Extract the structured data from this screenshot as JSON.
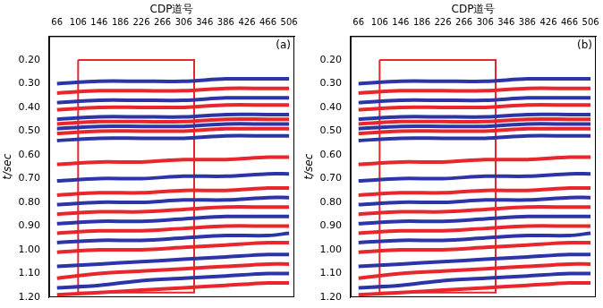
{
  "chart_data": [
    {
      "type": "line",
      "panel_label": "(a)",
      "x_label": "CDP道号",
      "y_label": "t/sec",
      "xlim": [
        51,
        516
      ],
      "xticks": [
        66,
        106,
        146,
        186,
        226,
        266,
        306,
        346,
        386,
        426,
        466,
        506
      ],
      "ylim": [
        0.1,
        1.2
      ],
      "yticks": [
        {
          "value": 0.2,
          "label": "0.20"
        },
        {
          "value": 0.3,
          "label": "0.30"
        },
        {
          "value": 0.4,
          "label": "0.40"
        },
        {
          "value": 0.5,
          "label": "0.50"
        },
        {
          "value": 0.6,
          "label": "0.60"
        },
        {
          "value": 0.7,
          "label": "0.70"
        },
        {
          "value": 0.8,
          "label": "0.80"
        },
        {
          "value": 0.9,
          "label": "0.90"
        },
        {
          "value": 1.0,
          "label": "1.00"
        },
        {
          "value": 1.1,
          "label": "1.10"
        },
        {
          "value": 1.2,
          "label": "1.20"
        }
      ],
      "grid": false,
      "legend": "none",
      "box": {
        "x": [
          106,
          326
        ],
        "y": [
          0.2,
          1.18
        ],
        "color": "#e8262b"
      },
      "x": [
        66,
        146,
        226,
        306,
        386,
        466,
        506
      ],
      "series": [
        {
          "color": "#2b35a8",
          "values": [
            0.3,
            0.29,
            0.29,
            0.29,
            0.28,
            0.28,
            0.28
          ]
        },
        {
          "color": "#e8262b",
          "values": [
            0.34,
            0.33,
            0.33,
            0.33,
            0.32,
            0.32,
            0.32
          ]
        },
        {
          "color": "#2b35a8",
          "values": [
            0.38,
            0.37,
            0.37,
            0.37,
            0.36,
            0.36,
            0.36
          ]
        },
        {
          "color": "#e8262b",
          "values": [
            0.41,
            0.4,
            0.4,
            0.4,
            0.39,
            0.39,
            0.39
          ]
        },
        {
          "color": "#2b35a8",
          "values": [
            0.45,
            0.44,
            0.44,
            0.44,
            0.43,
            0.43,
            0.43
          ]
        },
        {
          "color": "#e8262b",
          "values": [
            0.47,
            0.46,
            0.46,
            0.46,
            0.45,
            0.45,
            0.45
          ]
        },
        {
          "color": "#2b35a8",
          "values": [
            0.49,
            0.48,
            0.48,
            0.48,
            0.47,
            0.47,
            0.47
          ]
        },
        {
          "color": "#e8262b",
          "values": [
            0.51,
            0.5,
            0.5,
            0.5,
            0.49,
            0.49,
            0.49
          ]
        },
        {
          "color": "#2b35a8",
          "values": [
            0.54,
            0.53,
            0.53,
            0.53,
            0.52,
            0.52,
            0.52
          ]
        },
        {
          "color": "#e8262b",
          "values": [
            0.64,
            0.63,
            0.63,
            0.62,
            0.62,
            0.61,
            0.61
          ]
        },
        {
          "color": "#2b35a8",
          "values": [
            0.71,
            0.7,
            0.7,
            0.69,
            0.69,
            0.68,
            0.68
          ]
        },
        {
          "color": "#e8262b",
          "values": [
            0.77,
            0.76,
            0.76,
            0.75,
            0.75,
            0.74,
            0.74
          ]
        },
        {
          "color": "#2b35a8",
          "values": [
            0.81,
            0.8,
            0.8,
            0.79,
            0.79,
            0.78,
            0.78
          ]
        },
        {
          "color": "#e8262b",
          "values": [
            0.85,
            0.84,
            0.84,
            0.83,
            0.82,
            0.82,
            0.82
          ]
        },
        {
          "color": "#2b35a8",
          "values": [
            0.89,
            0.88,
            0.88,
            0.87,
            0.86,
            0.86,
            0.86
          ]
        },
        {
          "color": "#e8262b",
          "values": [
            0.93,
            0.92,
            0.92,
            0.91,
            0.9,
            0.9,
            0.9
          ]
        },
        {
          "color": "#2b35a8",
          "values": [
            0.97,
            0.96,
            0.96,
            0.95,
            0.94,
            0.94,
            0.93
          ]
        },
        {
          "color": "#e8262b",
          "values": [
            1.01,
            1.0,
            1.0,
            0.99,
            0.98,
            0.97,
            0.97
          ]
        },
        {
          "color": "#2b35a8",
          "values": [
            1.07,
            1.06,
            1.05,
            1.04,
            1.03,
            1.02,
            1.02
          ]
        },
        {
          "color": "#e8262b",
          "values": [
            1.12,
            1.1,
            1.09,
            1.08,
            1.07,
            1.06,
            1.06
          ]
        },
        {
          "color": "#2b35a8",
          "values": [
            1.16,
            1.15,
            1.13,
            1.12,
            1.11,
            1.1,
            1.1
          ]
        },
        {
          "color": "#e8262b",
          "values": [
            1.19,
            1.18,
            1.17,
            1.16,
            1.15,
            1.14,
            1.14
          ]
        }
      ]
    },
    {
      "type": "line",
      "panel_label": "(b)",
      "x_label": "CDP道号",
      "y_label": "t/sec",
      "xlim": [
        51,
        516
      ],
      "xticks": [
        66,
        106,
        146,
        186,
        226,
        266,
        306,
        346,
        386,
        426,
        466,
        506
      ],
      "ylim": [
        0.1,
        1.2
      ],
      "yticks": [
        {
          "value": 0.2,
          "label": "0.20"
        },
        {
          "value": 0.3,
          "label": "0.30"
        },
        {
          "value": 0.4,
          "label": "0.40"
        },
        {
          "value": 0.5,
          "label": "0.50"
        },
        {
          "value": 0.6,
          "label": "0.60"
        },
        {
          "value": 0.7,
          "label": "0.70"
        },
        {
          "value": 0.8,
          "label": "0.80"
        },
        {
          "value": 0.9,
          "label": "0.90"
        },
        {
          "value": 1.0,
          "label": "1.00"
        },
        {
          "value": 1.1,
          "label": "1.10"
        },
        {
          "value": 1.2,
          "label": "1.20"
        }
      ],
      "grid": false,
      "legend": "none",
      "box": {
        "x": [
          106,
          326
        ],
        "y": [
          0.2,
          1.18
        ],
        "color": "#e8262b"
      },
      "x": [
        66,
        146,
        226,
        306,
        386,
        466,
        506
      ],
      "series": [
        {
          "color": "#2b35a8",
          "values": [
            0.3,
            0.29,
            0.29,
            0.29,
            0.28,
            0.28,
            0.28
          ]
        },
        {
          "color": "#e8262b",
          "values": [
            0.34,
            0.33,
            0.33,
            0.33,
            0.32,
            0.32,
            0.32
          ]
        },
        {
          "color": "#2b35a8",
          "values": [
            0.38,
            0.37,
            0.37,
            0.37,
            0.36,
            0.36,
            0.36
          ]
        },
        {
          "color": "#e8262b",
          "values": [
            0.41,
            0.4,
            0.4,
            0.4,
            0.39,
            0.39,
            0.39
          ]
        },
        {
          "color": "#2b35a8",
          "values": [
            0.45,
            0.44,
            0.44,
            0.44,
            0.43,
            0.43,
            0.43
          ]
        },
        {
          "color": "#e8262b",
          "values": [
            0.47,
            0.46,
            0.46,
            0.46,
            0.45,
            0.45,
            0.45
          ]
        },
        {
          "color": "#2b35a8",
          "values": [
            0.49,
            0.48,
            0.48,
            0.48,
            0.47,
            0.47,
            0.47
          ]
        },
        {
          "color": "#e8262b",
          "values": [
            0.51,
            0.5,
            0.5,
            0.5,
            0.49,
            0.49,
            0.49
          ]
        },
        {
          "color": "#2b35a8",
          "values": [
            0.54,
            0.53,
            0.53,
            0.53,
            0.52,
            0.52,
            0.52
          ]
        },
        {
          "color": "#e8262b",
          "values": [
            0.64,
            0.63,
            0.63,
            0.62,
            0.62,
            0.61,
            0.61
          ]
        },
        {
          "color": "#2b35a8",
          "values": [
            0.71,
            0.7,
            0.7,
            0.69,
            0.69,
            0.68,
            0.68
          ]
        },
        {
          "color": "#e8262b",
          "values": [
            0.77,
            0.76,
            0.76,
            0.75,
            0.75,
            0.74,
            0.74
          ]
        },
        {
          "color": "#2b35a8",
          "values": [
            0.81,
            0.8,
            0.8,
            0.79,
            0.79,
            0.78,
            0.78
          ]
        },
        {
          "color": "#e8262b",
          "values": [
            0.85,
            0.84,
            0.84,
            0.83,
            0.82,
            0.82,
            0.82
          ]
        },
        {
          "color": "#2b35a8",
          "values": [
            0.89,
            0.88,
            0.88,
            0.87,
            0.86,
            0.86,
            0.86
          ]
        },
        {
          "color": "#e8262b",
          "values": [
            0.93,
            0.92,
            0.92,
            0.91,
            0.9,
            0.9,
            0.9
          ]
        },
        {
          "color": "#2b35a8",
          "values": [
            0.97,
            0.96,
            0.96,
            0.95,
            0.94,
            0.94,
            0.93
          ]
        },
        {
          "color": "#e8262b",
          "values": [
            1.01,
            1.0,
            1.0,
            0.99,
            0.98,
            0.97,
            0.97
          ]
        },
        {
          "color": "#2b35a8",
          "values": [
            1.07,
            1.06,
            1.05,
            1.04,
            1.03,
            1.02,
            1.02
          ]
        },
        {
          "color": "#e8262b",
          "values": [
            1.12,
            1.1,
            1.09,
            1.08,
            1.07,
            1.06,
            1.06
          ]
        },
        {
          "color": "#2b35a8",
          "values": [
            1.16,
            1.15,
            1.13,
            1.12,
            1.11,
            1.1,
            1.1
          ]
        },
        {
          "color": "#e8262b",
          "values": [
            1.19,
            1.18,
            1.17,
            1.16,
            1.15,
            1.14,
            1.14
          ]
        }
      ]
    }
  ]
}
